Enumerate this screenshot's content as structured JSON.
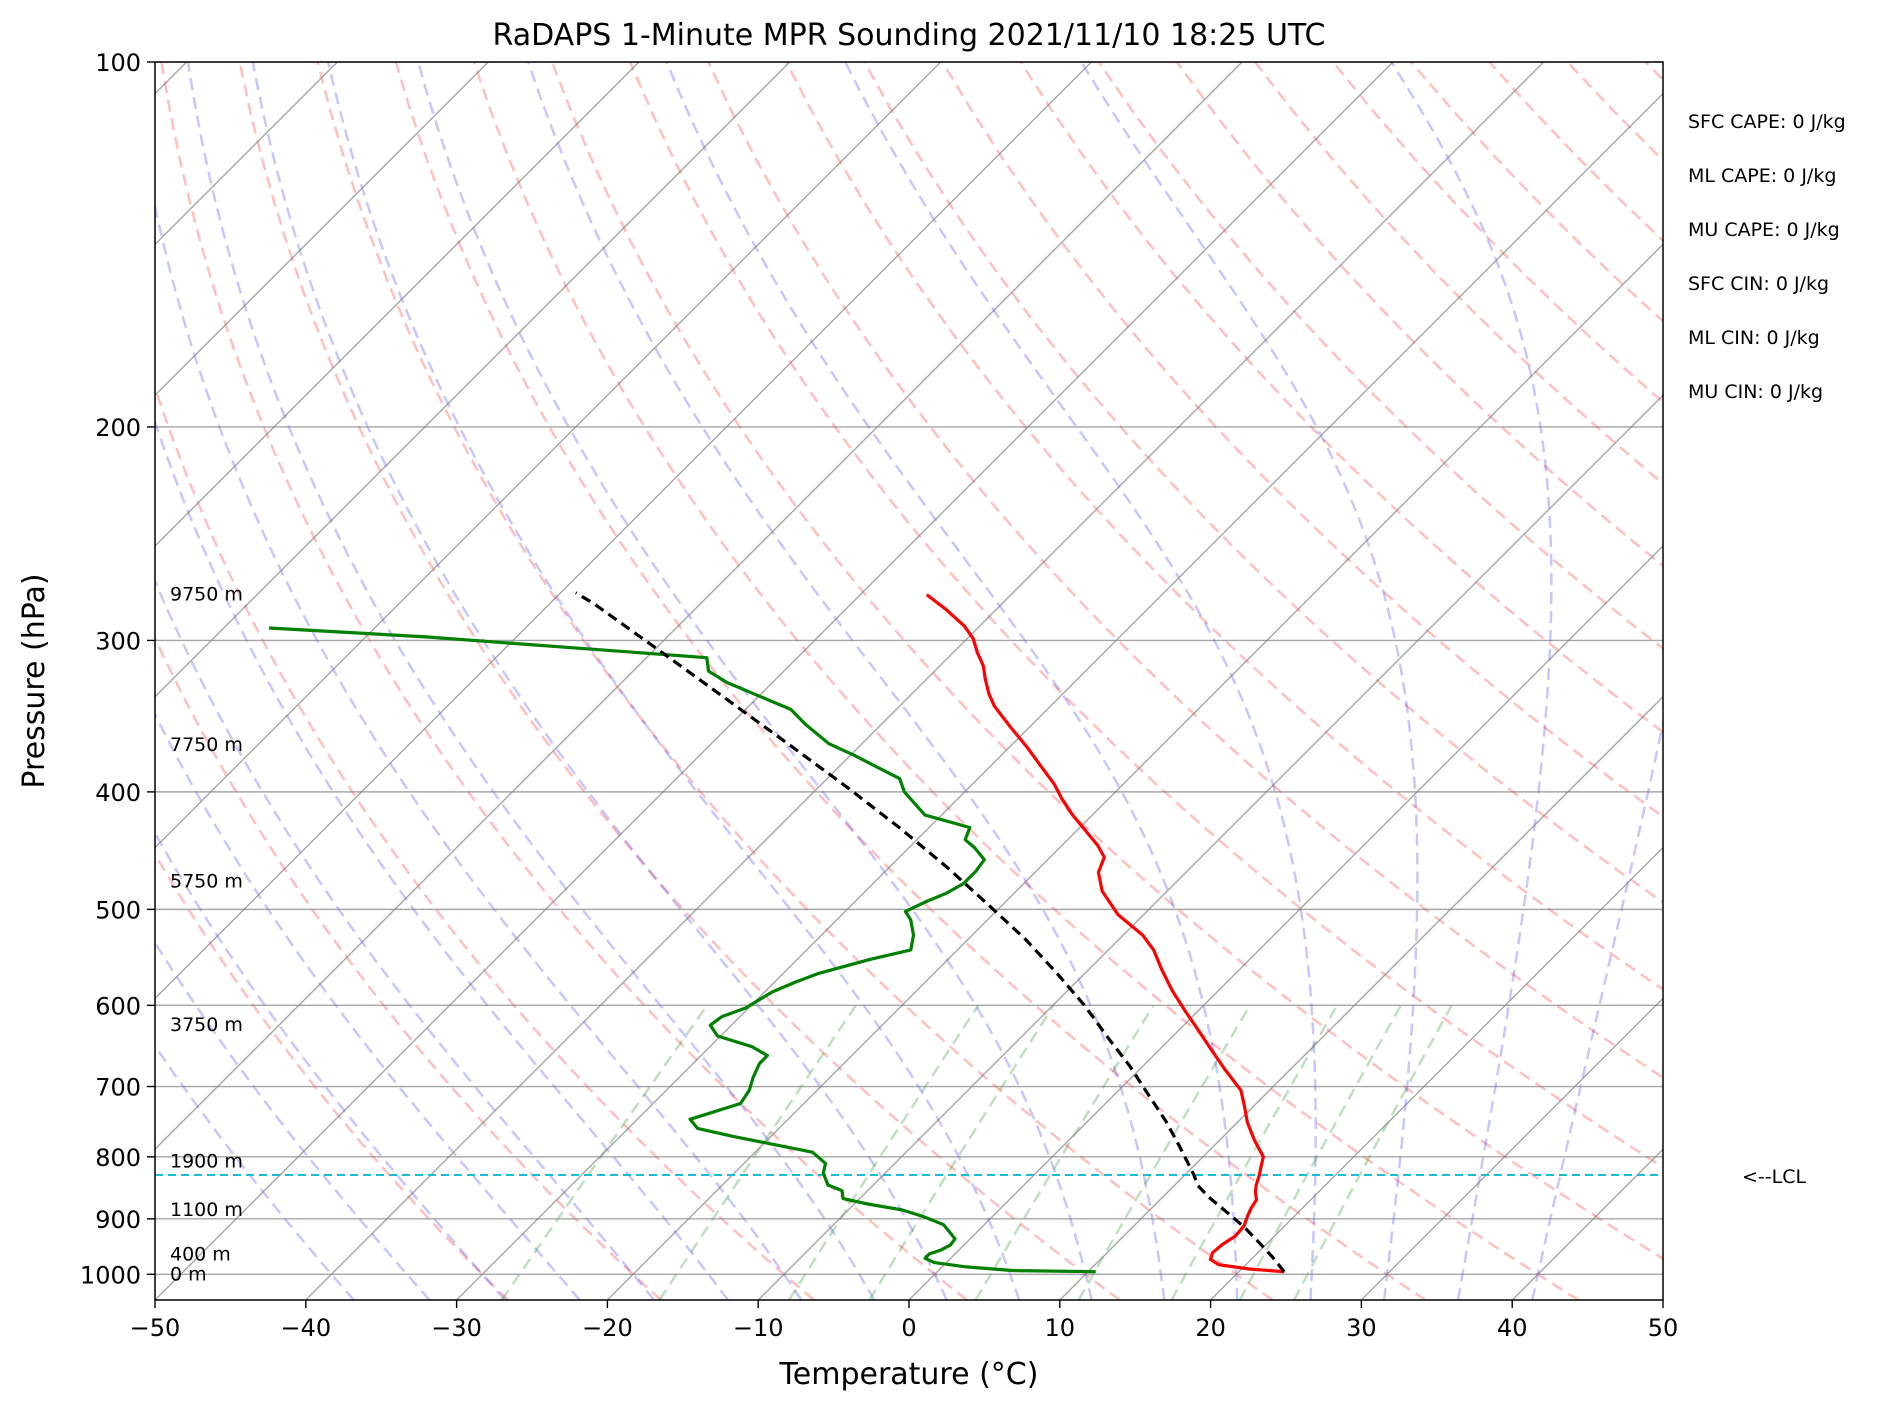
{
  "chart_data": {
    "type": "line",
    "title": "RaDAPS 1-Minute MPR Sounding 2021/11/10 18:25 UTC",
    "xlabel": "Temperature (°C)",
    "ylabel": "Pressure (hPa)",
    "xlim": [
      -50,
      50
    ],
    "ylim": [
      1050,
      100
    ],
    "y_scale": "log",
    "skew": "skew-T",
    "grid": true,
    "x_ticks": [
      -50,
      -40,
      -30,
      -20,
      -10,
      0,
      10,
      20,
      30,
      40,
      50
    ],
    "x_tick_labels": [
      "−50",
      "−40",
      "−30",
      "−20",
      "−10",
      "0",
      "10",
      "20",
      "30",
      "40",
      "50"
    ],
    "y_ticks": [
      100,
      200,
      300,
      400,
      500,
      600,
      700,
      800,
      900,
      1000
    ],
    "y_tick_labels": [
      "100",
      "200",
      "300",
      "400",
      "500",
      "600",
      "700",
      "800",
      "900",
      "1000"
    ],
    "height_labels": [
      {
        "text": "9750 m",
        "p": 275
      },
      {
        "text": "7750 m",
        "p": 366
      },
      {
        "text": "5750 m",
        "p": 474
      },
      {
        "text": "3750 m",
        "p": 623
      },
      {
        "text": "1900 m",
        "p": 807
      },
      {
        "text": "1100 m",
        "p": 885
      },
      {
        "text": "400 m",
        "p": 963
      },
      {
        "text": "0 m",
        "p": 1000
      }
    ],
    "lcl": {
      "label": "<--LCL",
      "p": 828,
      "color": "#17becf"
    },
    "indices": [
      "SFC CAPE: 0 J/kg",
      "ML CAPE: 0 J/kg",
      "MU CAPE: 0 J/kg",
      "SFC CIN: 0 J/kg",
      "ML CIN: 0 J/kg",
      "MU CIN: 0 J/kg"
    ],
    "series": [
      {
        "color": "#ff0000",
        "points": [
          [
            23,
            995
          ],
          [
            20.5,
            990
          ],
          [
            18.2,
            982
          ],
          [
            17.3,
            972
          ],
          [
            17.0,
            960
          ],
          [
            17.1,
            945
          ],
          [
            17.4,
            930
          ],
          [
            17.3,
            912
          ],
          [
            16.9,
            896
          ],
          [
            16.6,
            882
          ],
          [
            16.4,
            868
          ],
          [
            15.8,
            855
          ],
          [
            15.4,
            844
          ],
          [
            15.0,
            830
          ],
          [
            14.5,
            815
          ],
          [
            14.0,
            800
          ],
          [
            12.3,
            775
          ],
          [
            10.7,
            750
          ],
          [
            9.3,
            725
          ],
          [
            8.1,
            705
          ],
          [
            5.6,
            677
          ],
          [
            3.2,
            650
          ],
          [
            1.3,
            629
          ],
          [
            -0.8,
            607
          ],
          [
            -3.1,
            583
          ],
          [
            -5.2,
            560
          ],
          [
            -7.0,
            540
          ],
          [
            -8.7,
            525
          ],
          [
            -11.7,
            505
          ],
          [
            -14.3,
            483
          ],
          [
            -15.8,
            466
          ],
          [
            -16.4,
            453
          ],
          [
            -17.6,
            443
          ],
          [
            -19.5,
            430
          ],
          [
            -21.3,
            418
          ],
          [
            -23.0,
            406
          ],
          [
            -24.6,
            394
          ],
          [
            -26.8,
            380
          ],
          [
            -28.9,
            367
          ],
          [
            -31.2,
            354
          ],
          [
            -33.7,
            340
          ],
          [
            -34.9,
            332
          ],
          [
            -36.1,
            323
          ],
          [
            -37.1,
            315
          ],
          [
            -38.4,
            307
          ],
          [
            -39.6,
            299
          ],
          [
            -41.0,
            292
          ],
          [
            -43.3,
            283
          ],
          [
            -45.6,
            275
          ]
        ]
      },
      {
        "color": "#008000",
        "points": [
          [
            10.5,
            995
          ],
          [
            5.0,
            993
          ],
          [
            1.6,
            986
          ],
          [
            -0.8,
            978
          ],
          [
            -1.7,
            970
          ],
          [
            -1.7,
            962
          ],
          [
            -1.2,
            955
          ],
          [
            -0.9,
            946
          ],
          [
            -1.0,
            935
          ],
          [
            -1.6,
            926
          ],
          [
            -2.7,
            910
          ],
          [
            -4.6,
            896
          ],
          [
            -6.4,
            885
          ],
          [
            -9.1,
            875
          ],
          [
            -11.1,
            866
          ],
          [
            -11.7,
            853
          ],
          [
            -13.0,
            844
          ],
          [
            -14.1,
            825
          ],
          [
            -14.6,
            810
          ],
          [
            -16.2,
            793
          ],
          [
            -22.4,
            770
          ],
          [
            -25.4,
            758
          ],
          [
            -26.5,
            745
          ],
          [
            -24.2,
            723
          ],
          [
            -24.5,
            705
          ],
          [
            -25.1,
            688
          ],
          [
            -25.6,
            670
          ],
          [
            -25.6,
            660
          ],
          [
            -27.2,
            649
          ],
          [
            -30.2,
            636
          ],
          [
            -31.4,
            623
          ],
          [
            -31.2,
            613
          ],
          [
            -30.2,
            603
          ],
          [
            -29.5,
            585
          ],
          [
            -28.6,
            574
          ],
          [
            -27.7,
            565
          ],
          [
            -25.2,
            550
          ],
          [
            -23.1,
            540
          ],
          [
            -23.9,
            525
          ],
          [
            -25.1,
            510
          ],
          [
            -26.0,
            502
          ],
          [
            -25.3,
            493
          ],
          [
            -24.5,
            485
          ],
          [
            -24.0,
            476
          ],
          [
            -24.0,
            465
          ],
          [
            -24.2,
            455
          ],
          [
            -25.6,
            445
          ],
          [
            -26.8,
            438
          ],
          [
            -27.3,
            428
          ],
          [
            -31.1,
            418
          ],
          [
            -34.0,
            400
          ],
          [
            -35.2,
            390
          ],
          [
            -39.8,
            373
          ],
          [
            -42.2,
            365
          ],
          [
            -45.0,
            352
          ],
          [
            -47.0,
            342
          ],
          [
            -53.0,
            325
          ],
          [
            -55.0,
            318
          ],
          [
            -56.0,
            310
          ],
          [
            -76.0,
            298
          ],
          [
            -87.0,
            293
          ]
        ]
      },
      {
        "color": "#000000",
        "dashed": true,
        "points": [
          [
            23,
            995
          ],
          [
            21.2,
            967
          ],
          [
            19.3,
            940
          ],
          [
            17.3,
            913
          ],
          [
            15.2,
            888
          ],
          [
            13.0,
            863
          ],
          [
            11.5,
            844
          ],
          [
            10.6,
            828
          ],
          [
            7.8,
            785
          ],
          [
            5.2,
            748
          ],
          [
            2.1,
            709
          ],
          [
            -0.9,
            673
          ],
          [
            -4.2,
            638
          ],
          [
            -7.9,
            600
          ],
          [
            -11.8,
            565
          ],
          [
            -16.1,
            530
          ],
          [
            -20.9,
            496
          ],
          [
            -26.1,
            462
          ],
          [
            -31.8,
            429
          ],
          [
            -38.0,
            397
          ],
          [
            -44.7,
            366
          ],
          [
            -51.8,
            336
          ],
          [
            -59.3,
            307
          ],
          [
            -67.0,
            280
          ],
          [
            -69.0,
            274
          ]
        ]
      }
    ]
  }
}
